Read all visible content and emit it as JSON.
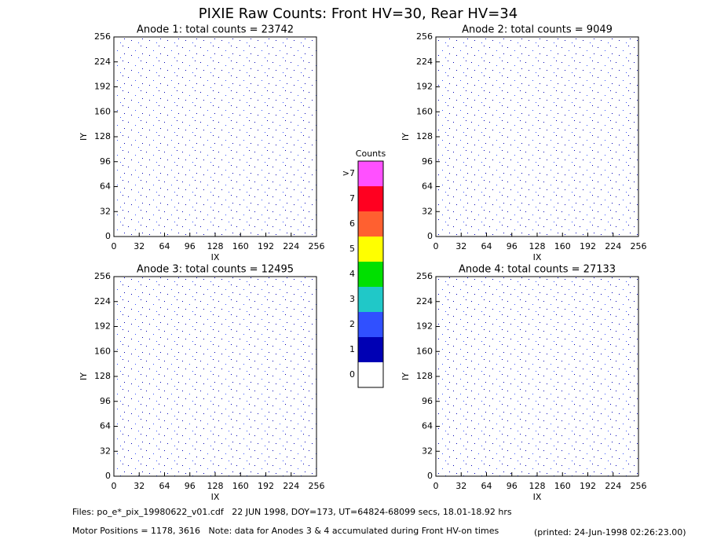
{
  "title": "PIXIE Raw Counts:  Front HV=30, Rear HV=34",
  "chart_data": [
    {
      "type": "heatmap",
      "title": "Anode 1: total counts = 23742",
      "xlabel": "IX",
      "ylabel": "IY",
      "xlim": [
        0,
        256
      ],
      "ylim": [
        0,
        256
      ],
      "xticks": [
        0,
        32,
        64,
        96,
        128,
        160,
        192,
        224,
        256
      ],
      "yticks": [
        0,
        32,
        64,
        96,
        128,
        160,
        192,
        224,
        256
      ]
    },
    {
      "type": "heatmap",
      "title": "Anode 2: total counts = 9049",
      "xlabel": "IX",
      "ylabel": "IY",
      "xlim": [
        0,
        256
      ],
      "ylim": [
        0,
        256
      ],
      "xticks": [
        0,
        32,
        64,
        96,
        128,
        160,
        192,
        224,
        256
      ],
      "yticks": [
        0,
        32,
        64,
        96,
        128,
        160,
        192,
        224,
        256
      ]
    },
    {
      "type": "heatmap",
      "title": "Anode 3: total counts = 12495",
      "xlabel": "IX",
      "ylabel": "IY",
      "xlim": [
        0,
        256
      ],
      "ylim": [
        0,
        256
      ],
      "xticks": [
        0,
        32,
        64,
        96,
        128,
        160,
        192,
        224,
        256
      ],
      "yticks": [
        0,
        32,
        64,
        96,
        128,
        160,
        192,
        224,
        256
      ]
    },
    {
      "type": "heatmap",
      "title": "Anode 4: total counts = 27133",
      "xlabel": "IX",
      "ylabel": "IY",
      "xlim": [
        0,
        256
      ],
      "ylim": [
        0,
        256
      ],
      "xticks": [
        0,
        32,
        64,
        96,
        128,
        160,
        192,
        224,
        256
      ],
      "yticks": [
        0,
        32,
        64,
        96,
        128,
        160,
        192,
        224,
        256
      ]
    }
  ],
  "colorbar": {
    "title": "Counts",
    "levels": [
      {
        "label": "0",
        "color": "#ffffff"
      },
      {
        "label": "1",
        "color": "#0000b4"
      },
      {
        "label": "2",
        "color": "#3050ff"
      },
      {
        "label": "3",
        "color": "#20c8c8"
      },
      {
        "label": "4",
        "color": "#00e000"
      },
      {
        "label": "5",
        "color": "#ffff00"
      },
      {
        "label": "6",
        "color": "#ff6030"
      },
      {
        "label": "7",
        "color": "#ff0020"
      },
      {
        "label": ">7",
        "color": "#ff50ff"
      }
    ]
  },
  "footer": {
    "files": "Files: po_e*_pix_19980622_v01.cdf   22 JUN 1998, DOY=173, UT=64824-68099 secs, 18.01-18.92 hrs",
    "motor": "Motor Positions = 1178, 3616   Note: data for Anodes 3 & 4 accumulated during Front HV-on times",
    "printed": "(printed: 24-Jun-1998 02:26:23.00)"
  }
}
